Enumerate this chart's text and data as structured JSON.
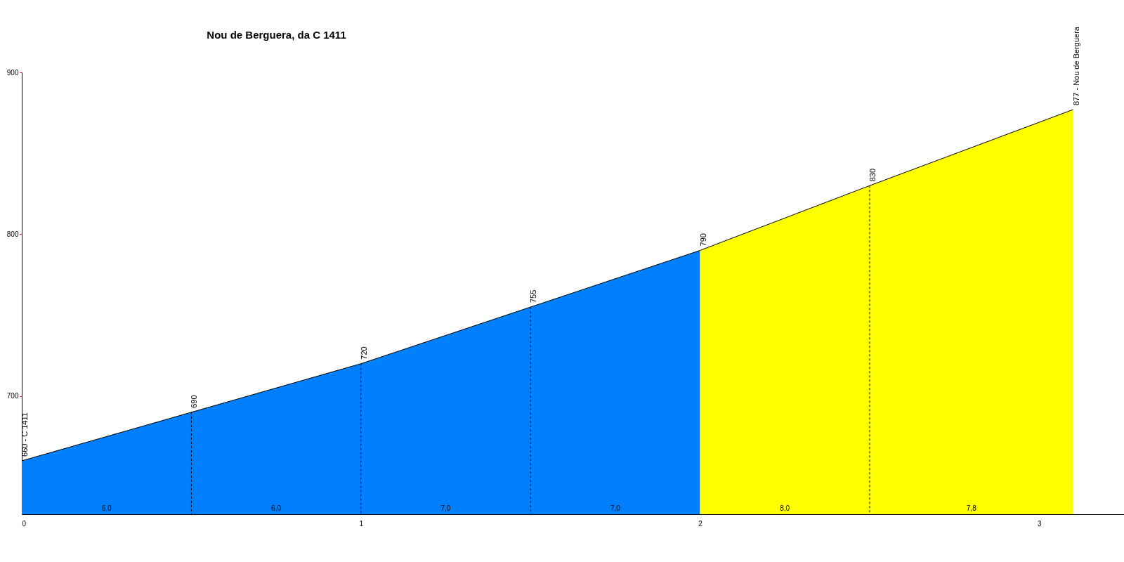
{
  "chart_data": {
    "type": "area",
    "title": "Nou de Berguera, da C 1411",
    "xlim": [
      0,
      3.25
    ],
    "xticks": [
      0,
      1,
      2,
      3
    ],
    "ylim": [
      627,
      900
    ],
    "yticks": [
      700,
      800,
      900
    ],
    "grid": false,
    "series": [
      {
        "color": "#0080ff",
        "x": [
          0,
          0.5,
          1,
          1.5,
          2
        ],
        "values": [
          660,
          690,
          720,
          755,
          790
        ],
        "value_labels": [
          "660 - C 1411",
          "690",
          "720",
          "755",
          "790"
        ]
      },
      {
        "color": "#ffff00",
        "x": [
          2,
          2.5,
          3.1
        ],
        "values": [
          790,
          830,
          877
        ],
        "value_labels": [
          null,
          "830",
          "877 - Nou de Berguera"
        ]
      }
    ],
    "annotations": [
      "6,0",
      "6,0",
      "7,0",
      "7,0",
      "8,0",
      "7,8"
    ]
  }
}
